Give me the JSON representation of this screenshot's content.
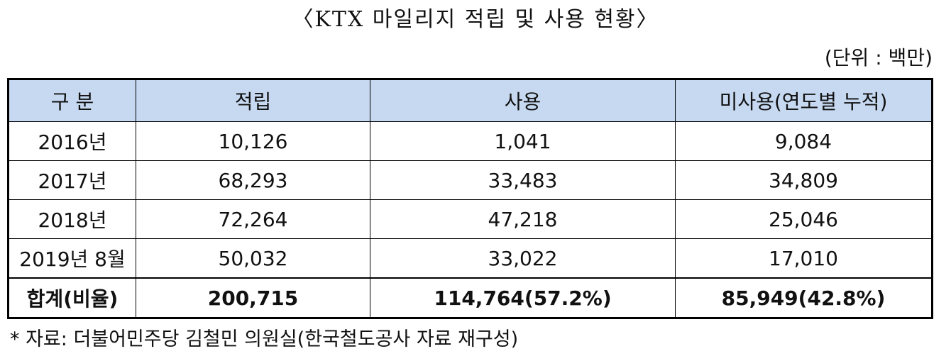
{
  "title": "〈KTX 마일리지 적립 및 사용 현황〉",
  "unit": "(단위 : 백만)",
  "table": {
    "header": [
      "구 분",
      "적립",
      "사용",
      "미사용(연도별 누적)"
    ],
    "rows": [
      [
        "2016년",
        "10,126",
        "1,041",
        "9,084"
      ],
      [
        "2017년",
        "68,293",
        "33,483",
        "34,809"
      ],
      [
        "2018년",
        "72,264",
        "47,218",
        "25,046"
      ],
      [
        "2019년 8월",
        "50,032",
        "33,022",
        "17,010"
      ]
    ],
    "total": [
      "합계(비율)",
      "200,715",
      "114,764(57.2%)",
      "85,949(42.8%)"
    ]
  },
  "note": "* 자료: 더불어민주당 김철민 의원실(한국철도공사 자료 재구성)"
}
